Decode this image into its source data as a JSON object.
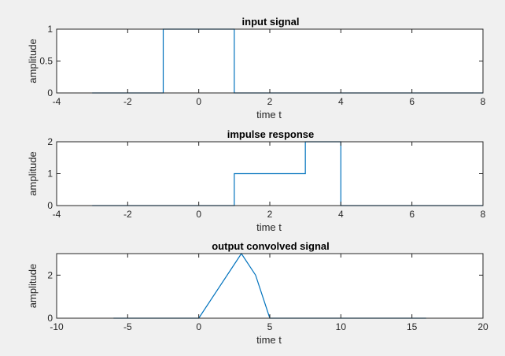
{
  "chart_data": [
    {
      "type": "line",
      "title": "input signal",
      "xlabel": "time t",
      "ylabel": "amplitude",
      "xlim": [
        -4,
        8
      ],
      "ylim": [
        0,
        1
      ],
      "xticks": [
        -4,
        -2,
        0,
        2,
        4,
        6,
        8
      ],
      "xtick_labels": [
        "-4",
        "-2",
        "0",
        "2",
        "4",
        "6",
        "8"
      ],
      "yticks": [
        0,
        0.5,
        1
      ],
      "ytick_labels": [
        "0",
        "0.5",
        "1"
      ],
      "grid": false,
      "color": "#0072bd",
      "series": [
        {
          "x": [
            -3,
            -1,
            -1,
            1,
            1,
            8
          ],
          "y": [
            0,
            0,
            1,
            1,
            0,
            0
          ]
        }
      ]
    },
    {
      "type": "line",
      "title": "impulse response",
      "xlabel": "time t",
      "ylabel": "amplitude",
      "xlim": [
        -4,
        8
      ],
      "ylim": [
        0,
        2
      ],
      "xticks": [
        -4,
        -2,
        0,
        2,
        4,
        6,
        8
      ],
      "xtick_labels": [
        "-4",
        "-2",
        "0",
        "2",
        "4",
        "6",
        "8"
      ],
      "yticks": [
        0,
        1,
        2
      ],
      "ytick_labels": [
        "0",
        "1",
        "2"
      ],
      "grid": false,
      "color": "#0072bd",
      "series": [
        {
          "x": [
            -3,
            1,
            1,
            3,
            3,
            4,
            4,
            8
          ],
          "y": [
            0,
            0,
            1,
            1,
            2,
            2,
            0,
            0
          ]
        }
      ]
    },
    {
      "type": "line",
      "title": "output convolved signal",
      "xlabel": "time t",
      "ylabel": "amplitude",
      "xlim": [
        -10,
        20
      ],
      "ylim": [
        0,
        3
      ],
      "xticks": [
        -10,
        -5,
        0,
        5,
        10,
        15,
        20
      ],
      "xtick_labels": [
        "-10",
        "-5",
        "0",
        "5",
        "10",
        "15",
        "20"
      ],
      "yticks": [
        0,
        2
      ],
      "ytick_labels": [
        "0",
        "2"
      ],
      "grid": false,
      "color": "#0072bd",
      "series": [
        {
          "x": [
            -6,
            0,
            3,
            4,
            5,
            16
          ],
          "y": [
            0,
            0,
            3,
            2,
            0,
            0
          ]
        }
      ]
    }
  ]
}
